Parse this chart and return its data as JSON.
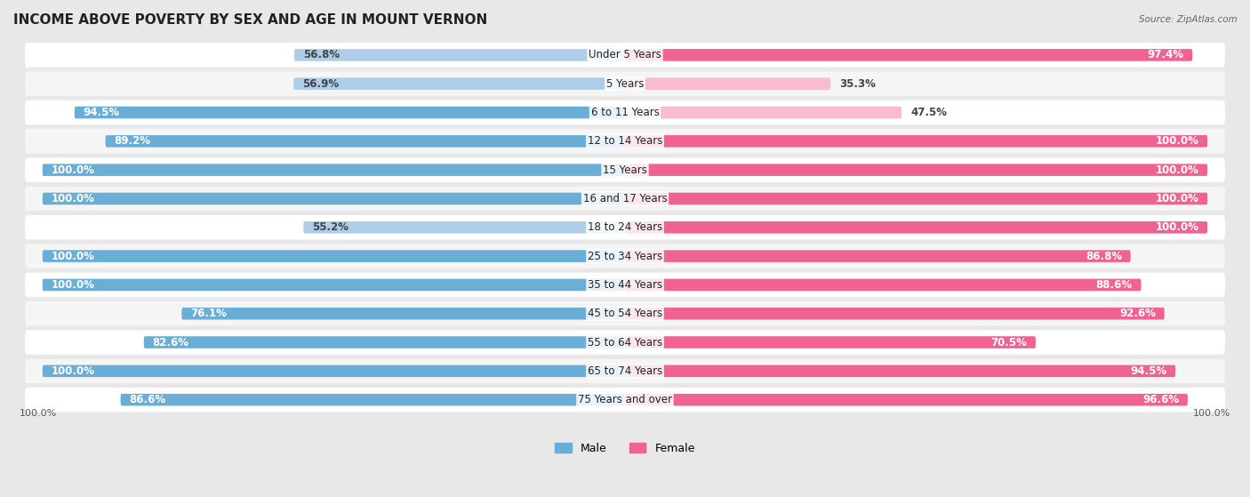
{
  "title": "INCOME ABOVE POVERTY BY SEX AND AGE IN MOUNT VERNON",
  "source": "Source: ZipAtlas.com",
  "categories": [
    "Under 5 Years",
    "5 Years",
    "6 to 11 Years",
    "12 to 14 Years",
    "15 Years",
    "16 and 17 Years",
    "18 to 24 Years",
    "25 to 34 Years",
    "35 to 44 Years",
    "45 to 54 Years",
    "55 to 64 Years",
    "65 to 74 Years",
    "75 Years and over"
  ],
  "male_values": [
    56.8,
    56.9,
    94.5,
    89.2,
    100.0,
    100.0,
    55.2,
    100.0,
    100.0,
    76.1,
    82.6,
    100.0,
    86.6
  ],
  "female_values": [
    97.4,
    35.3,
    47.5,
    100.0,
    100.0,
    100.0,
    100.0,
    86.8,
    88.6,
    92.6,
    70.5,
    94.5,
    96.6
  ],
  "male_color_strong": "#6aaed6",
  "male_color_light": "#aecde8",
  "female_color_strong": "#f06292",
  "female_color_light": "#f8bbd0",
  "male_label": "Male",
  "female_label": "Female",
  "bar_height": 0.42,
  "bg_color": "#e8e8e8",
  "row_bg_even": "#f5f5f5",
  "row_bg_odd": "#ffffff",
  "axis_label_bottom_left": "100.0%",
  "axis_label_bottom_right": "100.0%",
  "title_fontsize": 11,
  "label_fontsize": 8.5,
  "value_fontsize": 8.5,
  "strong_threshold": 70
}
